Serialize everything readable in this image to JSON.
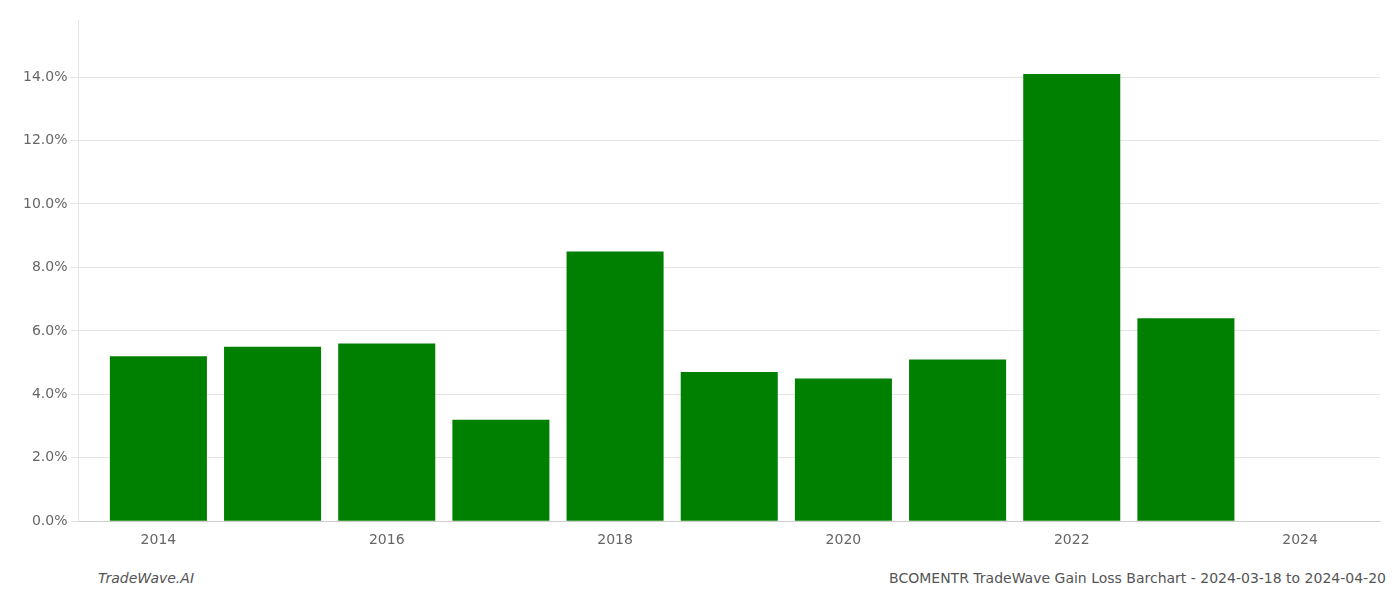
{
  "chart_data": {
    "type": "bar",
    "x": [
      2014,
      2015,
      2016,
      2017,
      2018,
      2019,
      2020,
      2021,
      2022,
      2023
    ],
    "values": [
      0.052,
      0.055,
      0.056,
      0.032,
      0.085,
      0.047,
      0.045,
      0.051,
      0.141,
      0.064
    ],
    "color": "#008000",
    "xlim": [
      2013.3,
      2024.7
    ],
    "xticks": [
      2014,
      2016,
      2018,
      2020,
      2022,
      2024
    ],
    "ylim": [
      0,
      0.158
    ],
    "yticks": [
      {
        "value": 0.0,
        "label": "0.0%"
      },
      {
        "value": 0.02,
        "label": "2.0%"
      },
      {
        "value": 0.04,
        "label": "4.0%"
      },
      {
        "value": 0.06,
        "label": "6.0%"
      },
      {
        "value": 0.08,
        "label": "8.0%"
      },
      {
        "value": 0.1,
        "label": "10.0%"
      },
      {
        "value": 0.12,
        "label": "12.0%"
      },
      {
        "value": 0.14,
        "label": "14.0%"
      }
    ],
    "grid": "y",
    "annotations": [
      "TradeWave.AI",
      "BCOMENTR TradeWave Gain Loss Barchart - 2024-03-18 to 2024-04-20"
    ]
  }
}
